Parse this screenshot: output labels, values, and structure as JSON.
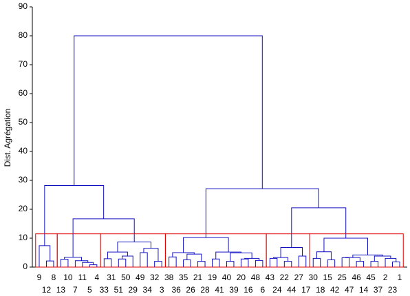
{
  "chart_data": {
    "type": "dendrogram",
    "y_label": "Dist. Agrégation",
    "ylim": [
      0,
      90
    ],
    "yticks": [
      0,
      10,
      20,
      30,
      40,
      50,
      60,
      70,
      80,
      90
    ],
    "line_color": "#1010c0",
    "cut_color": "#dd0000",
    "cut_height": 11.5,
    "tree": {
      "height": 80,
      "children": [
        {
          "height": 28.2,
          "children": [
            {
              "height": 7.4,
              "children": [
                {
                  "label": "9"
                },
                {
                  "height": 2.1,
                  "children": [
                    {
                      "label": "12"
                    },
                    {
                      "label": "8"
                    }
                  ]
                }
              ]
            },
            {
              "height": 16.7,
              "children": [
                {
                  "height": 3.4,
                  "children": [
                    {
                      "height": 2.7,
                      "children": [
                        {
                          "label": "13"
                        },
                        {
                          "label": "10"
                        }
                      ]
                    },
                    {
                      "height": 2.2,
                      "children": [
                        {
                          "label": "7"
                        },
                        {
                          "height": 1.6,
                          "children": [
                            {
                              "label": "11"
                            },
                            {
                              "height": 0.8,
                              "children": [
                                {
                                  "label": "5"
                                },
                                {
                                  "label": "4"
                                }
                              ]
                            }
                          ]
                        }
                      ]
                    }
                  ]
                },
                {
                  "height": 8.7,
                  "children": [
                    {
                      "height": 5.2,
                      "children": [
                        {
                          "height": 2.9,
                          "children": [
                            {
                              "label": "33"
                            },
                            {
                              "label": "31"
                            }
                          ]
                        },
                        {
                          "height": 3.8,
                          "children": [
                            {
                              "height": 2.8,
                              "children": [
                                {
                                  "label": "51"
                                },
                                {
                                  "label": "50"
                                }
                              ]
                            },
                            {
                              "label": "29"
                            }
                          ]
                        }
                      ]
                    },
                    {
                      "height": 6.5,
                      "children": [
                        {
                          "height": 5.0,
                          "children": [
                            {
                              "label": "49"
                            },
                            {
                              "label": "34"
                            }
                          ]
                        },
                        {
                          "height": 2.0,
                          "children": [
                            {
                              "label": "32"
                            },
                            {
                              "label": "3"
                            }
                          ]
                        }
                      ]
                    }
                  ]
                }
              ]
            }
          ]
        },
        {
          "height": 27.1,
          "children": [
            {
              "height": 10.2,
              "children": [
                {
                  "height": 5.0,
                  "children": [
                    {
                      "height": 3.5,
                      "children": [
                        {
                          "label": "38"
                        },
                        {
                          "label": "36"
                        }
                      ]
                    },
                    {
                      "height": 4.5,
                      "children": [
                        {
                          "height": 2.5,
                          "children": [
                            {
                              "label": "35"
                            },
                            {
                              "label": "26"
                            }
                          ]
                        },
                        {
                          "height": 2.0,
                          "children": [
                            {
                              "label": "21"
                            },
                            {
                              "label": "28"
                            }
                          ]
                        }
                      ]
                    }
                  ]
                },
                {
                  "height": 5.2,
                  "children": [
                    {
                      "height": 2.8,
                      "children": [
                        {
                          "label": "19"
                        },
                        {
                          "label": "41"
                        }
                      ]
                    },
                    {
                      "height": 4.9,
                      "children": [
                        {
                          "height": 2.0,
                          "children": [
                            {
                              "label": "40"
                            },
                            {
                              "label": "39"
                            }
                          ]
                        },
                        {
                          "height": 3.0,
                          "children": [
                            {
                              "height": 2.8,
                              "children": [
                                {
                                  "label": "20"
                                },
                                {
                                  "label": "16"
                                }
                              ]
                            },
                            {
                              "height": 2.3,
                              "children": [
                                {
                                  "label": "48"
                                },
                                {
                                  "label": "6"
                                }
                              ]
                            }
                          ]
                        }
                      ]
                    }
                  ]
                }
              ]
            },
            {
              "height": 20.5,
              "children": [
                {
                  "height": 6.8,
                  "children": [
                    {
                      "height": 3.3,
                      "children": [
                        {
                          "height": 3.0,
                          "children": [
                            {
                              "label": "43"
                            },
                            {
                              "label": "24"
                            }
                          ]
                        },
                        {
                          "height": 2.0,
                          "children": [
                            {
                              "label": "22"
                            },
                            {
                              "label": "44"
                            }
                          ]
                        }
                      ]
                    },
                    {
                      "height": 3.8,
                      "children": [
                        {
                          "label": "27"
                        },
                        {
                          "label": "17"
                        }
                      ]
                    }
                  ]
                },
                {
                  "height": 10.0,
                  "children": [
                    {
                      "height": 5.3,
                      "children": [
                        {
                          "height": 3.0,
                          "children": [
                            {
                              "label": "30"
                            },
                            {
                              "label": "18"
                            }
                          ]
                        },
                        {
                          "height": 2.5,
                          "children": [
                            {
                              "label": "15"
                            },
                            {
                              "label": "42"
                            }
                          ]
                        }
                      ]
                    },
                    {
                      "height": 4.2,
                      "children": [
                        {
                          "height": 3.3,
                          "children": [
                            {
                              "height": 3.2,
                              "children": [
                                {
                                  "label": "25"
                                },
                                {
                                  "label": "47"
                                }
                              ]
                            },
                            {
                              "height": 2.0,
                              "children": [
                                {
                                  "label": "46"
                                },
                                {
                                  "label": "14"
                                }
                              ]
                            }
                          ]
                        },
                        {
                          "height": 3.8,
                          "children": [
                            {
                              "height": 2.0,
                              "children": [
                                {
                                  "label": "45"
                                },
                                {
                                  "label": "37"
                                }
                              ]
                            },
                            {
                              "height": 3.0,
                              "children": [
                                {
                                  "label": "2"
                                },
                                {
                                  "height": 1.8,
                                  "children": [
                                    {
                                      "label": "23"
                                    },
                                    {
                                      "label": "1"
                                    }
                                  ]
                                }
                              ]
                            }
                          ]
                        }
                      ]
                    }
                  ]
                }
              ]
            }
          ]
        }
      ]
    }
  }
}
